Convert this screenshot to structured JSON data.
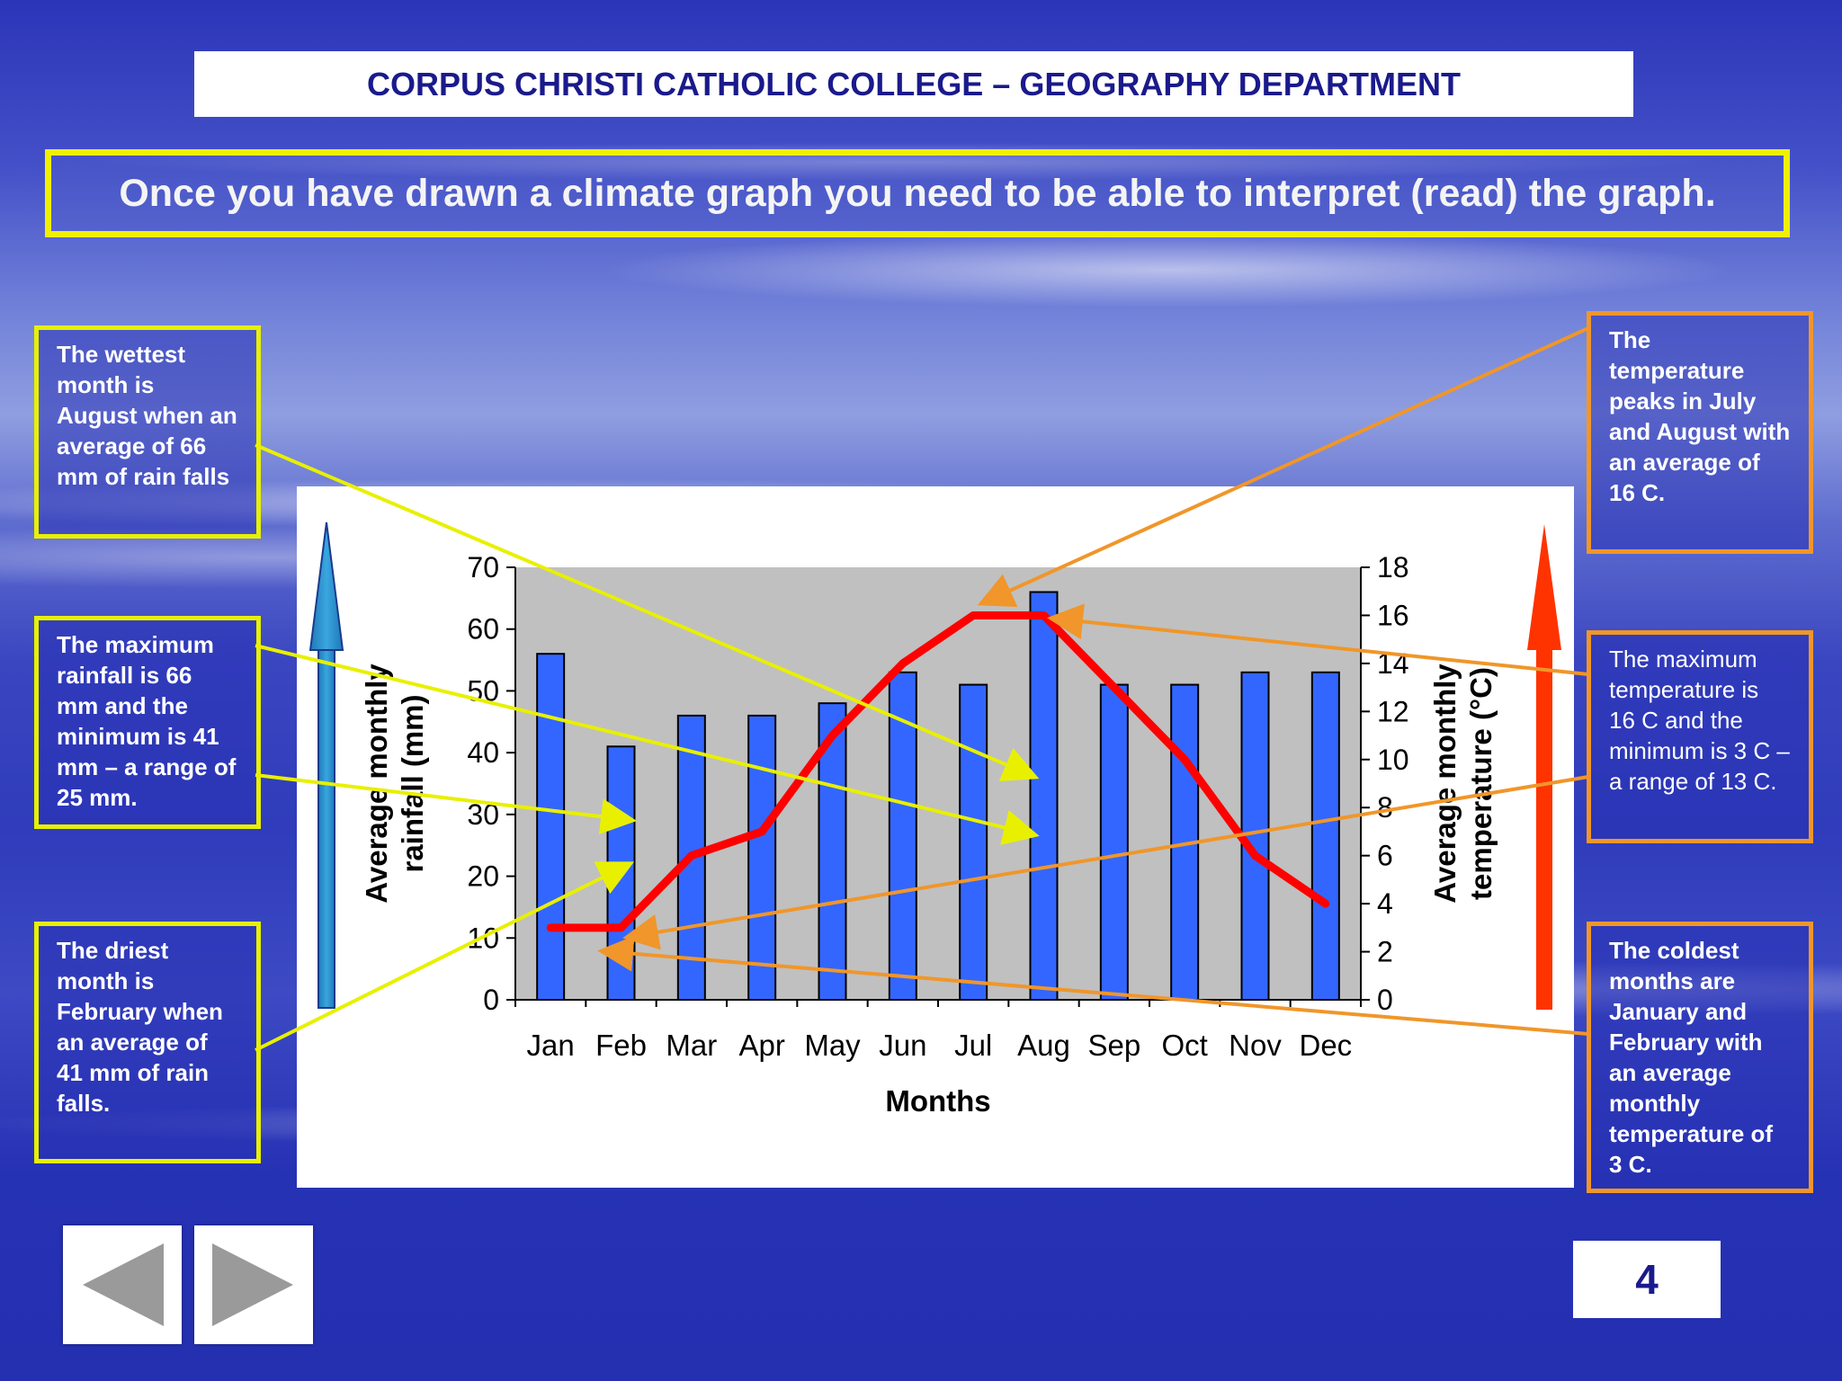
{
  "header": {
    "title": "CORPUS CHRISTI CATHOLIC COLLEGE – GEOGRAPHY DEPARTMENT"
  },
  "banner": {
    "text": "Once you have drawn a climate graph you need to be able to interpret (read) the graph."
  },
  "callouts": {
    "wettest": "The wettest month is August when an average of 66 mm of rain falls",
    "rain_range": "The maximum rainfall is 66 mm and the minimum is 41 mm – a range of 25 mm.",
    "driest": "The driest month is February when an average of 41 mm of rain falls.",
    "temp_peak": "The temperature peaks in July and August with an average of 16 C.",
    "temp_range": "The maximum temperature is 16 C and the minimum is 3 C – a range of 13 C.",
    "coldest": "The coldest months are January and February with an average monthly temperature of 3 C."
  },
  "page_number": "4",
  "colors": {
    "bar": "#3366ff",
    "line": "#ff0000",
    "yellow": "#e8f000",
    "orange": "#f0962a",
    "plot_bg": "#c0c0c0"
  },
  "icons": {
    "prev": "left-triangle-icon",
    "next": "right-triangle-icon",
    "rain_arrow": "up-arrow-icon",
    "temp_arrow": "up-arrow-icon"
  },
  "chart_data": {
    "type": "bar",
    "categories": [
      "Jan",
      "Feb",
      "Mar",
      "Apr",
      "May",
      "Jun",
      "Jul",
      "Aug",
      "Sep",
      "Oct",
      "Nov",
      "Dec"
    ],
    "rainfall": [
      56,
      41,
      46,
      46,
      48,
      53,
      51,
      66,
      51,
      51,
      53,
      53
    ],
    "temperature": [
      3,
      3,
      6,
      7,
      11,
      14,
      16,
      16,
      13,
      10,
      6,
      4
    ],
    "xlabel": "Months",
    "ylabel_left": "Average monthly rainfall (mm)",
    "ylabel_right": "Average monthly temperature (°C)",
    "ylim_left": [
      0,
      70
    ],
    "ylim_right": [
      0,
      18
    ],
    "yticks_left": [
      "0",
      "10",
      "20",
      "30",
      "40",
      "50",
      "60",
      "70"
    ],
    "yticks_right": [
      "0",
      "2",
      "4",
      "6",
      "8",
      "10",
      "12",
      "14",
      "16",
      "18"
    ]
  }
}
